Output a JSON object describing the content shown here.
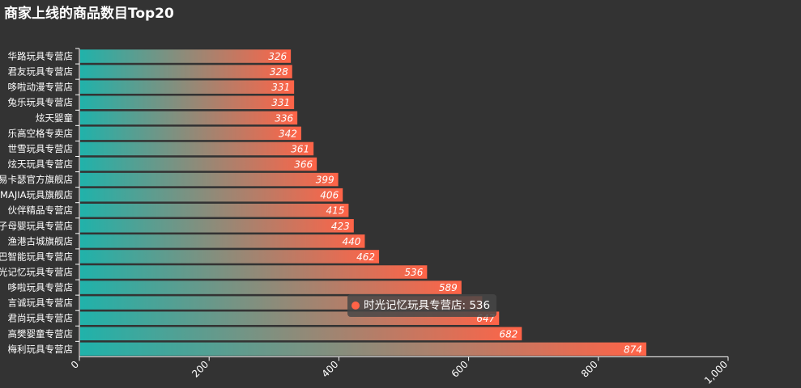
{
  "chart_data": {
    "type": "bar",
    "orientation": "horizontal",
    "title": "商家上线的商品数目Top20",
    "categories": [
      "华路玩具专营店",
      "君友玩具专营店",
      "哆啦动漫专营店",
      "兔乐玩具专营店",
      "炫天婴童",
      "乐高空格专卖店",
      "世雪玩具专营店",
      "炫天玩具专营店",
      "贝易卡瑟官方旗舰店",
      "MAJIA玩具旗舰店",
      "伙伴精品专营店",
      "孩子母婴玩具专营店",
      "渔港古城旗舰店",
      "巴巴智能玩具专营店",
      "时光记忆玩具专营店",
      "哆啦玩具专营店",
      "言诚玩具专营店",
      "君尚玩具专营店",
      "高樊婴童专营店",
      "梅利玩具专营店"
    ],
    "values": [
      326,
      328,
      331,
      331,
      336,
      342,
      361,
      366,
      399,
      406,
      415,
      423,
      440,
      462,
      536,
      589,
      621,
      647,
      682,
      874
    ],
    "value_labels": [
      "326",
      "328",
      "331",
      "331",
      "336",
      "342",
      "361",
      "366",
      "399",
      "406",
      "415",
      "423",
      "440",
      "462",
      "536",
      "589",
      "",
      "647",
      "682",
      "874"
    ],
    "xlim": [
      0,
      1000
    ],
    "xticks": [
      0,
      200,
      400,
      600,
      800,
      1000
    ],
    "xtick_labels": [
      "0",
      "200",
      "400",
      "600",
      "800",
      "1,000"
    ],
    "grid": false,
    "gradient_colors": [
      "#20b2aa",
      "#ff6347"
    ],
    "background": "#333333"
  },
  "tooltip": {
    "text": "时光记忆玩具专营店: 536",
    "color": "#ff6347"
  }
}
